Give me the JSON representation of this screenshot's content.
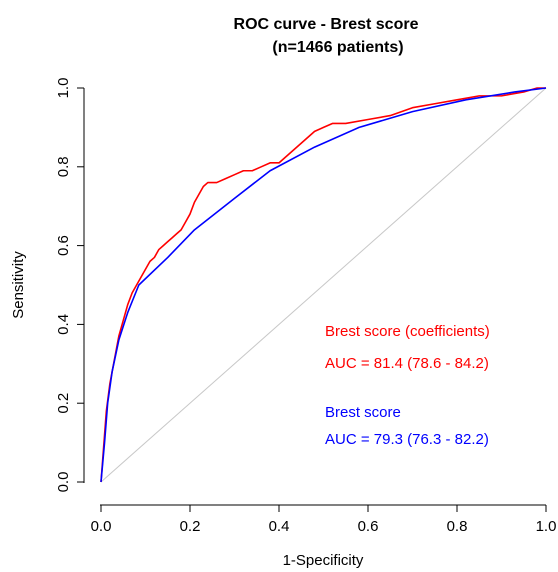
{
  "chart_data": {
    "type": "line",
    "title_line1": "ROC curve - Brest score",
    "title_line2": "(n=1466 patients)",
    "xlabel": "1-Specificity",
    "ylabel": "Sensitivity",
    "xlim": [
      0,
      1
    ],
    "ylim": [
      0,
      1
    ],
    "x_ticks": [
      0.0,
      0.2,
      0.4,
      0.6,
      0.8,
      1.0
    ],
    "x_tick_labels": [
      "0.0",
      "0.2",
      "0.4",
      "0.6",
      "0.8",
      "1.0"
    ],
    "y_ticks": [
      0.0,
      0.2,
      0.4,
      0.6,
      0.8,
      1.0
    ],
    "y_tick_labels": [
      "0.0",
      "0.2",
      "0.4",
      "0.6",
      "0.8",
      "1.0"
    ],
    "grid": false,
    "reference_line": {
      "x": [
        0,
        1
      ],
      "y": [
        0,
        1
      ],
      "color": "#c8c8c8"
    },
    "series": [
      {
        "name": "Brest score (coefficients)",
        "color": "#ff0000",
        "x": [
          0,
          0.004,
          0.008,
          0.012,
          0.02,
          0.03,
          0.04,
          0.05,
          0.06,
          0.07,
          0.08,
          0.09,
          0.1,
          0.11,
          0.12,
          0.13,
          0.14,
          0.15,
          0.16,
          0.17,
          0.18,
          0.19,
          0.2,
          0.21,
          0.22,
          0.23,
          0.24,
          0.25,
          0.26,
          0.28,
          0.3,
          0.32,
          0.34,
          0.36,
          0.38,
          0.4,
          0.42,
          0.44,
          0.46,
          0.48,
          0.5,
          0.52,
          0.55,
          0.6,
          0.65,
          0.7,
          0.75,
          0.8,
          0.85,
          0.9,
          0.95,
          0.98,
          1.0
        ],
        "y": [
          0,
          0.06,
          0.12,
          0.18,
          0.25,
          0.31,
          0.37,
          0.41,
          0.45,
          0.48,
          0.5,
          0.52,
          0.54,
          0.56,
          0.57,
          0.59,
          0.6,
          0.61,
          0.62,
          0.63,
          0.64,
          0.66,
          0.68,
          0.71,
          0.73,
          0.75,
          0.76,
          0.76,
          0.76,
          0.77,
          0.78,
          0.79,
          0.79,
          0.8,
          0.81,
          0.81,
          0.83,
          0.85,
          0.87,
          0.89,
          0.9,
          0.91,
          0.91,
          0.92,
          0.93,
          0.95,
          0.96,
          0.97,
          0.98,
          0.98,
          0.99,
          1.0,
          1.0
        ]
      },
      {
        "name": "Brest score",
        "color": "#0000ff",
        "x": [
          0,
          0.008,
          0.015,
          0.025,
          0.04,
          0.06,
          0.085,
          0.15,
          0.21,
          0.3,
          0.38,
          0.48,
          0.58,
          0.7,
          0.82,
          0.93,
          1.0
        ],
        "y": [
          0,
          0.1,
          0.2,
          0.28,
          0.36,
          0.43,
          0.5,
          0.57,
          0.64,
          0.72,
          0.79,
          0.85,
          0.9,
          0.94,
          0.97,
          0.99,
          1.0
        ]
      }
    ],
    "annotations": [
      {
        "text": "Brest score (coefficients)",
        "color": "#ff0000"
      },
      {
        "text": "AUC = 81.4 (78.6 - 84.2)",
        "color": "#ff0000"
      },
      {
        "text": "Brest score",
        "color": "#0000ff"
      },
      {
        "text": "AUC = 79.3 (76.3 - 82.2)",
        "color": "#0000ff"
      }
    ]
  }
}
